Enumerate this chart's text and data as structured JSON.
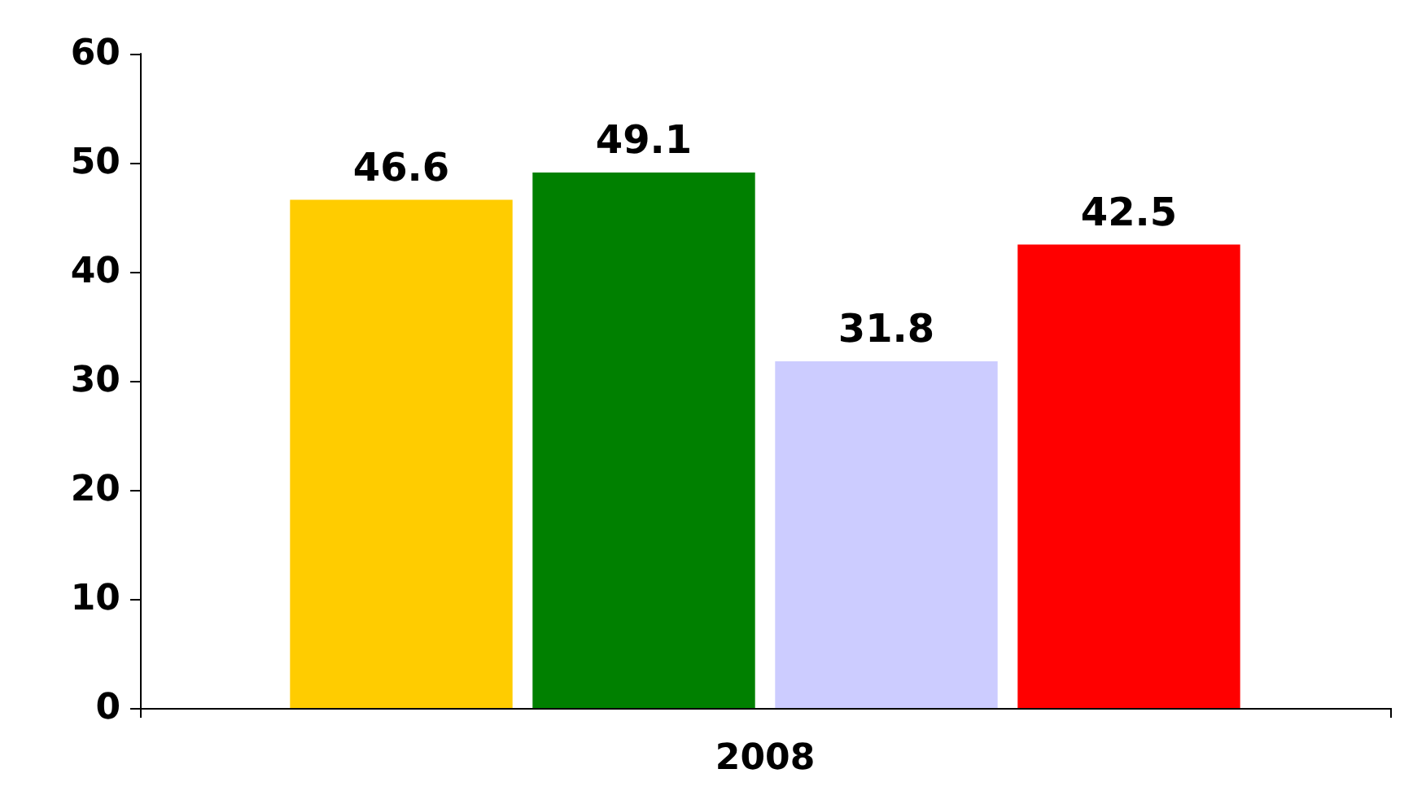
{
  "chart_data": {
    "type": "bar",
    "categories": [
      "2008"
    ],
    "series": [
      {
        "color": "#ffcc00",
        "values": [
          46.6
        ]
      },
      {
        "color": "#008000",
        "values": [
          49.1
        ]
      },
      {
        "color": "#ccccff",
        "values": [
          31.8
        ]
      },
      {
        "color": "#ff0000",
        "values": [
          42.5
        ]
      }
    ],
    "ylim": [
      0,
      60
    ],
    "yticks": [
      0,
      10,
      20,
      30,
      40,
      50,
      60
    ],
    "data_labels": true,
    "grid": false
  }
}
